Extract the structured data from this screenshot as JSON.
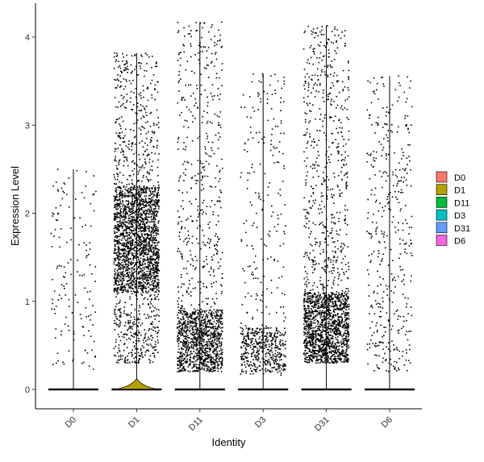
{
  "chart_data": {
    "type": "violin-jitter",
    "title": "",
    "xlabel": "Identity",
    "ylabel": "Expression Level",
    "ylim": [
      -0.25,
      4.3
    ],
    "yticks": [
      0,
      1,
      2,
      3,
      4
    ],
    "grid": false,
    "legend_position": "right",
    "categories": [
      "D0",
      "D1",
      "D11",
      "D3",
      "D31",
      "D6"
    ],
    "colors": [
      "#F8766D",
      "#B79F00",
      "#00BA38",
      "#00BFC4",
      "#619CFF",
      "#F564E3"
    ],
    "legend": [
      "D0",
      "D1",
      "D11",
      "D3",
      "D31",
      "D6"
    ],
    "series": [
      {
        "category": "D0",
        "violin_max": 2.5,
        "nonzero_points": 150,
        "nonzero_range": [
          0.2,
          2.5
        ],
        "dense_range": null,
        "point_color": "#000000"
      },
      {
        "category": "D1",
        "violin_max": 3.82,
        "nonzero_points": 2600,
        "nonzero_range": [
          0.3,
          3.82
        ],
        "dense_range": [
          1.1,
          2.3
        ],
        "point_color": "#000000"
      },
      {
        "category": "D11",
        "violin_max": 4.17,
        "nonzero_points": 1500,
        "nonzero_range": [
          0.2,
          4.17
        ],
        "dense_range": [
          0.2,
          0.9
        ],
        "point_color": "#000000"
      },
      {
        "category": "D3",
        "violin_max": 3.58,
        "nonzero_points": 650,
        "nonzero_range": [
          0.15,
          3.58
        ],
        "dense_range": [
          0.2,
          0.7
        ],
        "point_color": "#000000"
      },
      {
        "category": "D31",
        "violin_max": 4.13,
        "nonzero_points": 2000,
        "nonzero_range": [
          0.3,
          4.13
        ],
        "dense_range": [
          0.3,
          1.1
        ],
        "point_color": "#000000"
      },
      {
        "category": "D6",
        "violin_max": 3.56,
        "nonzero_points": 420,
        "nonzero_range": [
          0.2,
          3.56
        ],
        "dense_range": null,
        "point_color": "#000000"
      }
    ]
  }
}
